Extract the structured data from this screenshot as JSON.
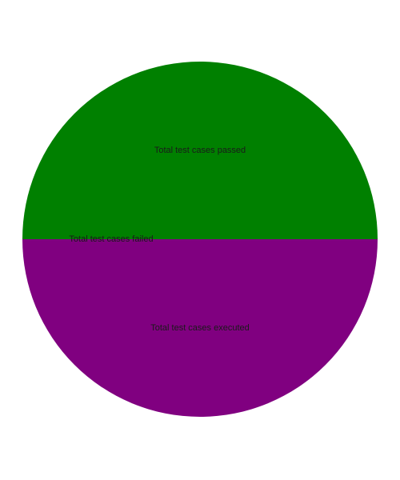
{
  "chart_data": {
    "type": "pie",
    "title": "",
    "slices": [
      {
        "label": "Total test cases passed",
        "value": 50,
        "color": "#008000"
      },
      {
        "label": "Total test cases failed",
        "value": 0,
        "color": "#ff0000"
      },
      {
        "label": "Total test cases executed",
        "value": 50,
        "color": "#800080"
      }
    ],
    "legend": "none"
  }
}
